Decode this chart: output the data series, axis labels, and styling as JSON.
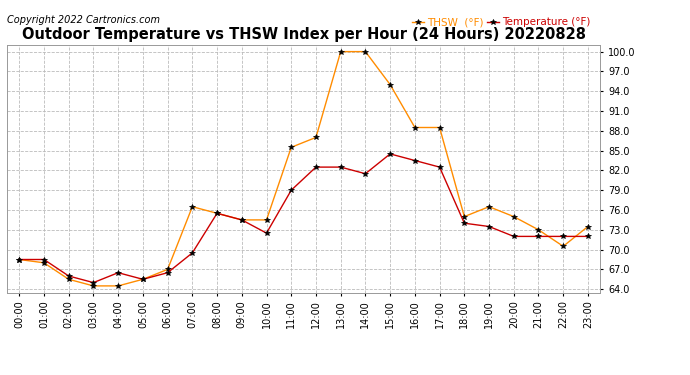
{
  "title": "Outdoor Temperature vs THSW Index per Hour (24 Hours) 20220828",
  "copyright": "Copyright 2022 Cartronics.com",
  "hours": [
    "00:00",
    "01:00",
    "02:00",
    "03:00",
    "04:00",
    "05:00",
    "06:00",
    "07:00",
    "08:00",
    "09:00",
    "10:00",
    "11:00",
    "12:00",
    "13:00",
    "14:00",
    "15:00",
    "16:00",
    "17:00",
    "18:00",
    "19:00",
    "20:00",
    "21:00",
    "22:00",
    "23:00"
  ],
  "thsw": [
    68.5,
    68.0,
    65.5,
    64.5,
    64.5,
    65.5,
    67.0,
    76.5,
    75.5,
    74.5,
    74.5,
    85.5,
    87.0,
    100.0,
    100.0,
    95.0,
    88.5,
    88.5,
    75.0,
    76.5,
    75.0,
    73.0,
    70.5,
    73.5
  ],
  "temperature": [
    68.5,
    68.5,
    66.0,
    65.0,
    66.5,
    65.5,
    66.5,
    69.5,
    75.5,
    74.5,
    72.5,
    79.0,
    82.5,
    82.5,
    81.5,
    84.5,
    83.5,
    82.5,
    74.0,
    73.5,
    72.0,
    72.0,
    72.0,
    72.0
  ],
  "thsw_color": "#FF8C00",
  "temp_color": "#CC0000",
  "ylim": [
    63.5,
    101.0
  ],
  "yticks": [
    64.0,
    67.0,
    70.0,
    73.0,
    76.0,
    79.0,
    82.0,
    85.0,
    88.0,
    91.0,
    94.0,
    97.0,
    100.0
  ],
  "background_color": "#ffffff",
  "grid_color": "#bbbbbb",
  "title_fontsize": 10.5,
  "copyright_fontsize": 7,
  "tick_fontsize": 7,
  "legend_thsw": "THSW  (°F)",
  "legend_temp": "Temperature (°F)"
}
